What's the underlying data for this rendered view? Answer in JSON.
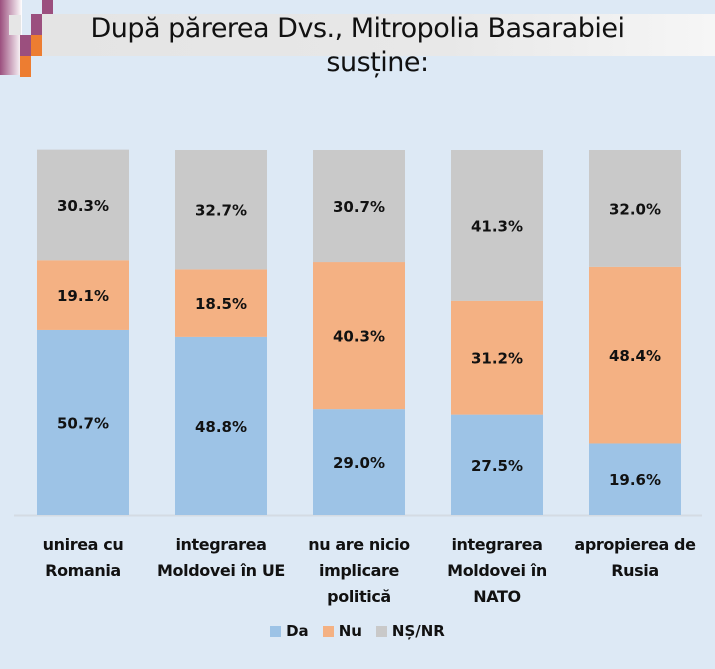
{
  "title": {
    "line1": "După părerea Dvs., Mitropolia Basarabiei",
    "line2": "susține:"
  },
  "colors": {
    "background": "#dde9f5",
    "da": "#9dc3e6",
    "nu": "#f4b183",
    "ns_nr": "#c9c9c9",
    "deco_purple": "#9b4f7e",
    "deco_orange": "#ed7d31"
  },
  "chart_data": {
    "type": "bar",
    "stacked": true,
    "title": "După părerea Dvs., Mitropolia Basarabiei susține:",
    "xlabel": "",
    "ylabel": "",
    "ylim": [
      0,
      100
    ],
    "grid": false,
    "legend_position": "bottom",
    "categories": [
      "unirea cu Romania",
      "integrarea Moldovei în UE",
      "nu are nicio implicare politică",
      "integrarea Moldovei în NATO",
      "apropierea de Rusia"
    ],
    "category_lines": [
      [
        "unirea cu",
        "Romania"
      ],
      [
        "integrarea",
        "Moldovei în UE"
      ],
      [
        "nu are nicio",
        "implicare",
        "politică"
      ],
      [
        "integrarea",
        "Moldovei în",
        "NATO"
      ],
      [
        "apropierea de",
        "Rusia"
      ]
    ],
    "series": [
      {
        "name": "Da",
        "values": [
          50.7,
          48.8,
          29.0,
          27.5,
          19.6
        ]
      },
      {
        "name": "Nu",
        "values": [
          19.1,
          18.5,
          40.3,
          31.2,
          48.4
        ]
      },
      {
        "name": "NȘ/NR",
        "values": [
          30.3,
          32.7,
          30.7,
          41.3,
          32.0
        ]
      }
    ],
    "data_labels": [
      [
        "50.7%",
        "48.8%",
        "29.0%",
        "27.5%",
        "19.6%"
      ],
      [
        "19.1%",
        "18.5%",
        "40.3%",
        "31.2%",
        "48.4%"
      ],
      [
        "30.3%",
        "32.7%",
        "30.7%",
        "41.3%",
        "32.0%"
      ]
    ]
  },
  "legend": [
    {
      "label": "Da"
    },
    {
      "label": "Nu"
    },
    {
      "label": "NȘ/NR"
    }
  ]
}
